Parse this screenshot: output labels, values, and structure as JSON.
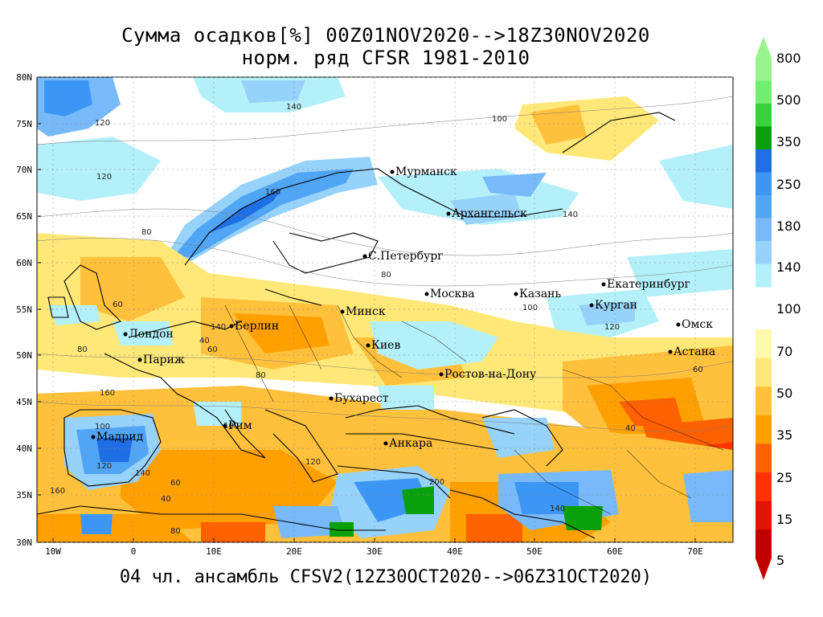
{
  "title_line1": "Сумма осадков[%] 00Z01NOV2020-->18Z30NOV2020",
  "title_line2": "норм. ряд CFSR 1981-2010",
  "footer": "04 чл. ансамбль CFSV2(12Z30OCT2020-->06Z31OCT2020)",
  "lat_labels": [
    "80N",
    "75N",
    "70N",
    "65N",
    "60N",
    "55N",
    "50N",
    "45N",
    "40N",
    "35N",
    "30N"
  ],
  "lon_labels": [
    "10W",
    "0",
    "10E",
    "20E",
    "30E",
    "40E",
    "50E",
    "60E",
    "70E"
  ],
  "cities": [
    "Мурманск",
    "Архангельск",
    "С.Петербург",
    "Москва",
    "Казань",
    "Екатеринбург",
    "Курган",
    "Омск",
    "Астана",
    "Минск",
    "Киев",
    "Берлин",
    "Лондон",
    "Париж",
    "Ростов-на-Дону",
    "Бухарест",
    "Рим",
    "Мадрид",
    "Анкара"
  ],
  "contour_values": [
    "120",
    "140",
    "160",
    "80",
    "100",
    "120",
    "140",
    "80",
    "100",
    "120",
    "140",
    "160",
    "60",
    "40",
    "60",
    "80",
    "100",
    "120",
    "140",
    "160",
    "200",
    "40",
    "60",
    "80",
    "100",
    "120",
    "140",
    "80",
    "40",
    "60"
  ],
  "colorbar": {
    "labels": [
      "800",
      "500",
      "350",
      "250",
      "180",
      "140",
      "100",
      "70",
      "50",
      "35",
      "25",
      "15",
      "5"
    ],
    "wet_colors": [
      "#b4f0fa",
      "#96d2fa",
      "#78b9fa",
      "#50a5f5",
      "#3c96f5",
      "#1e6ee6",
      "#0aa00a",
      "#37d23c",
      "#6ef06e",
      "#96f58c"
    ],
    "dry_colors": [
      "#fffaaa",
      "#ffe878",
      "#ffc03c",
      "#ffa000",
      "#ff6000",
      "#ff3200",
      "#e11400",
      "#c00000"
    ]
  }
}
